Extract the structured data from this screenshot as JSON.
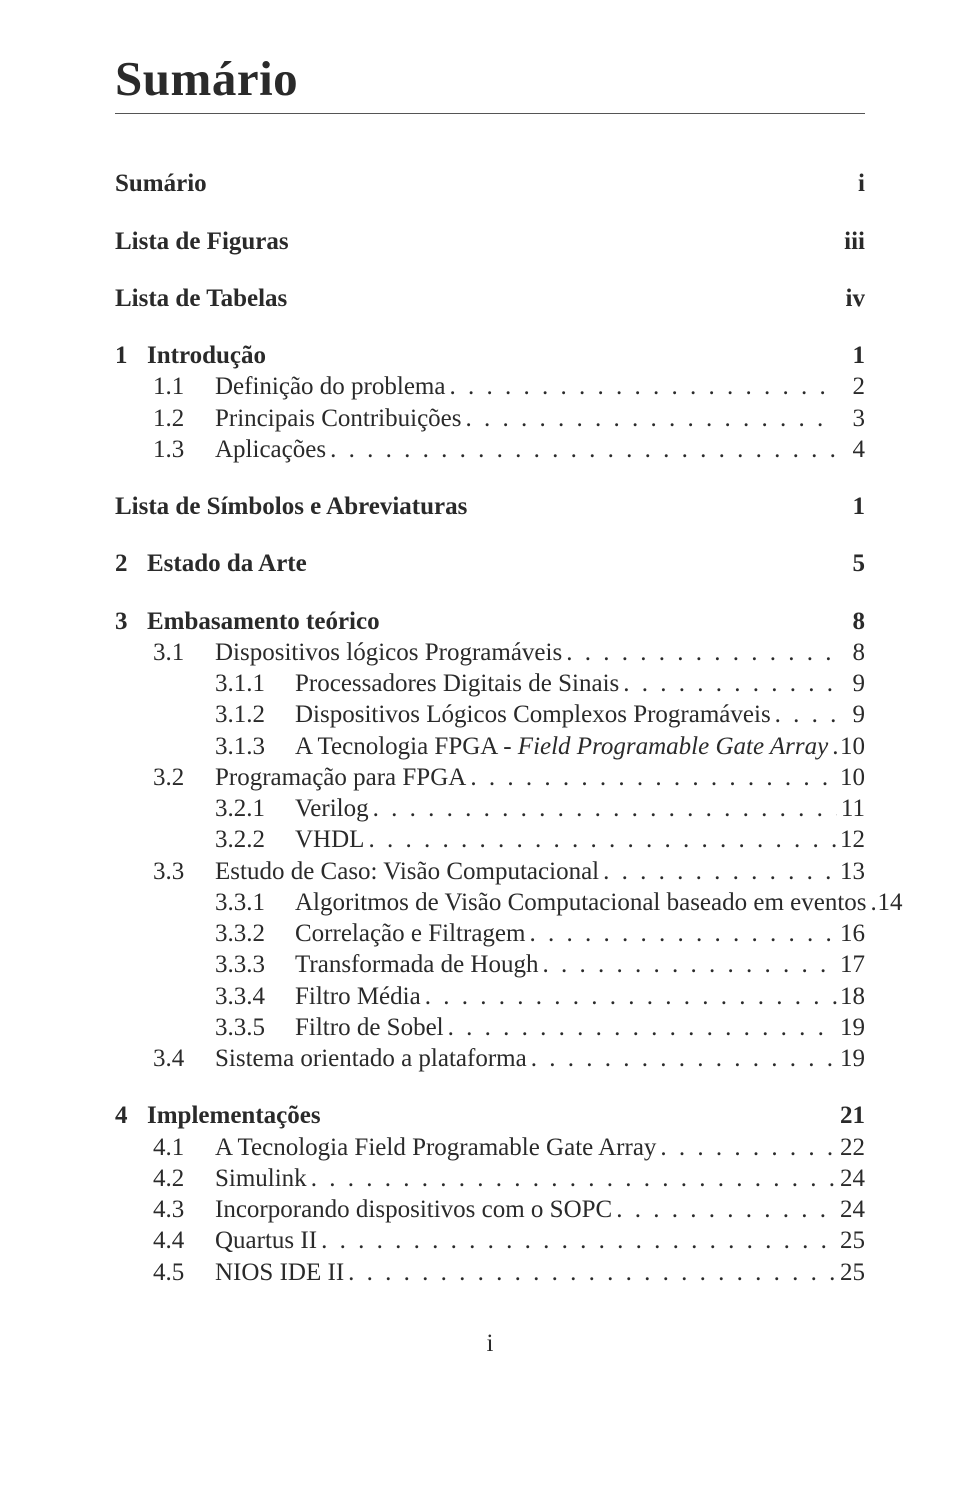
{
  "title": "Sumário",
  "footer_page": "i",
  "entries": [
    {
      "type": "row",
      "level": 0,
      "bold": true,
      "num": "",
      "label": "Sumário",
      "page": "i",
      "dots": false
    },
    {
      "type": "gap",
      "size": "big"
    },
    {
      "type": "row",
      "level": 0,
      "bold": true,
      "num": "",
      "label": "Lista de Figuras",
      "page": "iii",
      "dots": false
    },
    {
      "type": "gap",
      "size": "big"
    },
    {
      "type": "row",
      "level": 0,
      "bold": true,
      "num": "",
      "label": "Lista de Tabelas",
      "page": "iv",
      "dots": false
    },
    {
      "type": "gap",
      "size": "big"
    },
    {
      "type": "row",
      "level": 0,
      "bold": true,
      "num": "1",
      "label": "Introdução",
      "page": "1",
      "dots": false
    },
    {
      "type": "row",
      "level": 1,
      "bold": false,
      "num": "1.1",
      "label": "Definição do problema",
      "page": "2",
      "dots": true
    },
    {
      "type": "row",
      "level": 1,
      "bold": false,
      "num": "1.2",
      "label": "Principais Contribuições",
      "page": "3",
      "dots": true
    },
    {
      "type": "row",
      "level": 1,
      "bold": false,
      "num": "1.3",
      "label": "Aplicações",
      "page": "4",
      "dots": true
    },
    {
      "type": "gap",
      "size": "big"
    },
    {
      "type": "row",
      "level": 0,
      "bold": true,
      "num": "",
      "label": "Lista de Símbolos e Abreviaturas",
      "page": "1",
      "dots": false
    },
    {
      "type": "gap",
      "size": "big"
    },
    {
      "type": "row",
      "level": 0,
      "bold": true,
      "num": "2",
      "label": "Estado da Arte",
      "page": "5",
      "dots": false
    },
    {
      "type": "gap",
      "size": "big"
    },
    {
      "type": "row",
      "level": 0,
      "bold": true,
      "num": "3",
      "label": "Embasamento teórico",
      "page": "8",
      "dots": false
    },
    {
      "type": "row",
      "level": 1,
      "bold": false,
      "num": "3.1",
      "label": "Dispositivos lógicos Programáveis",
      "page": "8",
      "dots": true
    },
    {
      "type": "row",
      "level": 2,
      "bold": false,
      "num": "3.1.1",
      "label": "Processadores Digitais de Sinais",
      "page": "9",
      "dots": true
    },
    {
      "type": "row",
      "level": 2,
      "bold": false,
      "num": "3.1.2",
      "label": "Dispositivos Lógicos Complexos Programáveis",
      "page": "9",
      "dots": true
    },
    {
      "type": "row",
      "level": 2,
      "bold": false,
      "num": "3.1.3",
      "label_html": "A Tecnologia FPGA - <span class=\"italic-part\">Field Programable Gate Array</span>",
      "page": "10",
      "dots": true
    },
    {
      "type": "row",
      "level": 1,
      "bold": false,
      "num": "3.2",
      "label": "Programação para FPGA",
      "page": "10",
      "dots": true
    },
    {
      "type": "row",
      "level": 2,
      "bold": false,
      "num": "3.2.1",
      "label": "Verilog",
      "page": "11",
      "dots": true
    },
    {
      "type": "row",
      "level": 2,
      "bold": false,
      "num": "3.2.2",
      "label": "VHDL",
      "page": "12",
      "dots": true
    },
    {
      "type": "row",
      "level": 1,
      "bold": false,
      "num": "3.3",
      "label": "Estudo de Caso: Visão Computacional",
      "page": "13",
      "dots": true
    },
    {
      "type": "row",
      "level": 2,
      "bold": false,
      "num": "3.3.1",
      "label": "Algoritmos de Visão Computacional baseado em eventos",
      "page": "14",
      "dots": true
    },
    {
      "type": "row",
      "level": 2,
      "bold": false,
      "num": "3.3.2",
      "label": "Correlação e Filtragem",
      "page": "16",
      "dots": true
    },
    {
      "type": "row",
      "level": 2,
      "bold": false,
      "num": "3.3.3",
      "label": "Transformada de Hough",
      "page": "17",
      "dots": true
    },
    {
      "type": "row",
      "level": 2,
      "bold": false,
      "num": "3.3.4",
      "label": "Filtro Média",
      "page": "18",
      "dots": true
    },
    {
      "type": "row",
      "level": 2,
      "bold": false,
      "num": "3.3.5",
      "label": "Filtro de Sobel",
      "page": "19",
      "dots": true
    },
    {
      "type": "row",
      "level": 1,
      "bold": false,
      "num": "3.4",
      "label": "Sistema orientado a plataforma",
      "page": "19",
      "dots": true
    },
    {
      "type": "gap",
      "size": "big"
    },
    {
      "type": "row",
      "level": 0,
      "bold": true,
      "num": "4",
      "label": "Implementações",
      "page": "21",
      "dots": false
    },
    {
      "type": "row",
      "level": 1,
      "bold": false,
      "num": "4.1",
      "label": "A Tecnologia Field Programable Gate Array",
      "page": "22",
      "dots": true
    },
    {
      "type": "row",
      "level": 1,
      "bold": false,
      "num": "4.2",
      "label": "Simulink",
      "page": "24",
      "dots": true
    },
    {
      "type": "row",
      "level": 1,
      "bold": false,
      "num": "4.3",
      "label": "Incorporando dispositivos com o SOPC",
      "page": "24",
      "dots": true
    },
    {
      "type": "row",
      "level": 1,
      "bold": false,
      "num": "4.4",
      "label": "Quartus II",
      "page": "25",
      "dots": true
    },
    {
      "type": "row",
      "level": 1,
      "bold": false,
      "num": "4.5",
      "label": "NIOS IDE II",
      "page": "25",
      "dots": true
    }
  ]
}
